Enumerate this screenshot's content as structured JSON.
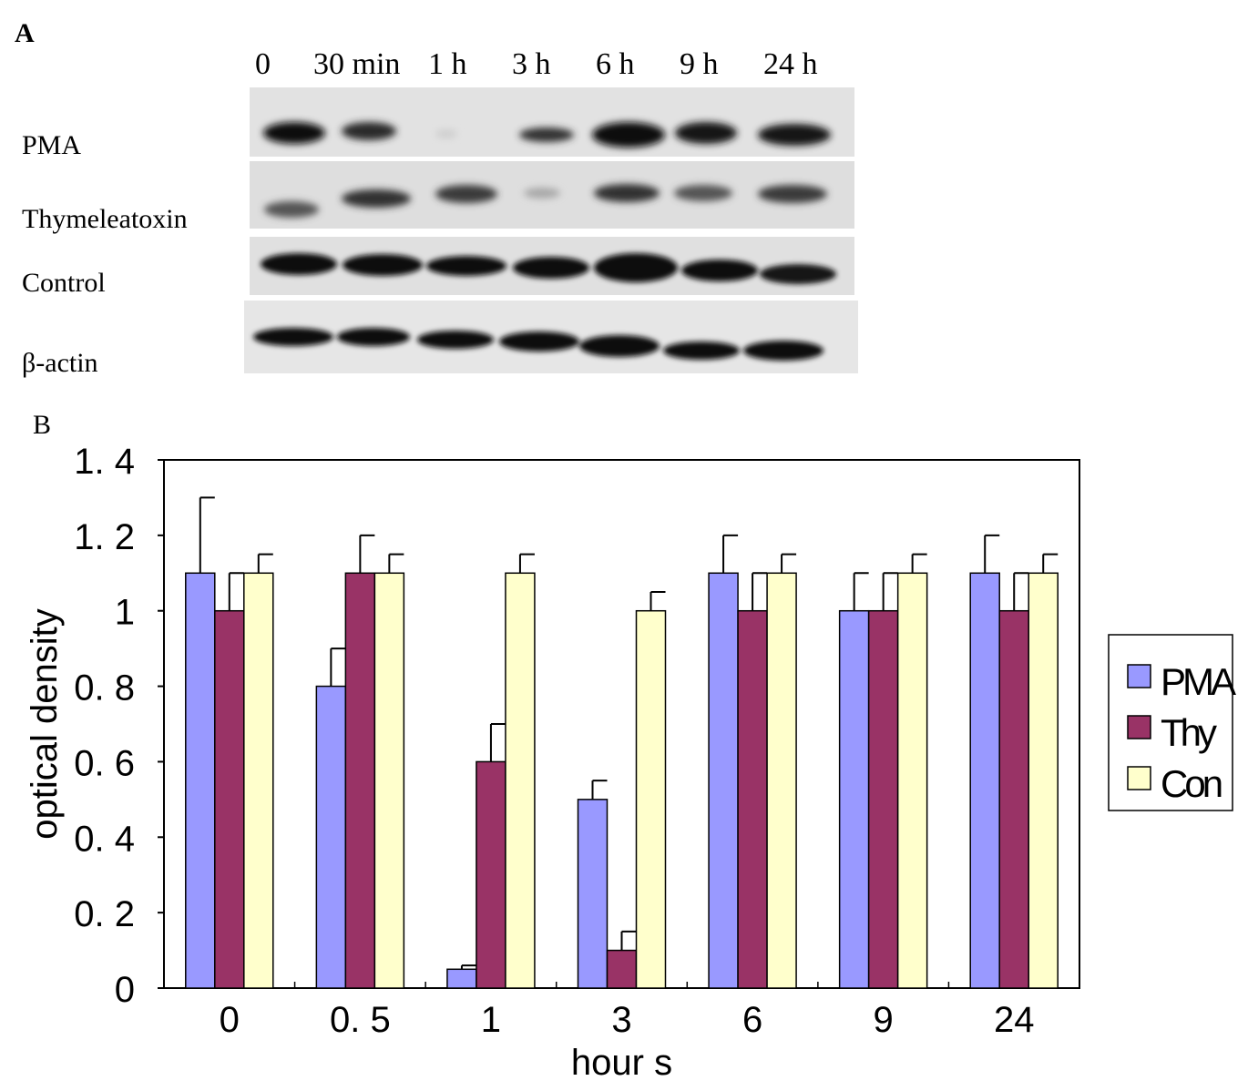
{
  "panelA": {
    "letter": "A",
    "lanes": [
      "0",
      "30 min",
      "1 h",
      "3 h",
      "6 h",
      "9 h",
      "24 h"
    ],
    "rows": [
      "PMA",
      "Thymeleatoxin",
      "Control",
      "β-actin"
    ]
  },
  "panelB": {
    "letter": "B"
  },
  "chart_data": {
    "type": "bar",
    "title": "",
    "xlabel": "hour s",
    "ylabel": "optical density",
    "categories": [
      "0",
      "0. 5",
      "1",
      "3",
      "6",
      "9",
      "24"
    ],
    "ylim": [
      0,
      1.4
    ],
    "yticks": [
      "0",
      "0. 2",
      "0. 4",
      "0. 6",
      "0. 8",
      "1",
      "1. 2",
      "1. 4"
    ],
    "grid": false,
    "legend_position": "right",
    "series": [
      {
        "name": "PMA",
        "color": "#9999ff",
        "values": [
          1.1,
          0.8,
          0.05,
          0.5,
          1.1,
          1.0,
          1.1
        ],
        "errors": [
          0.2,
          0.1,
          0.01,
          0.05,
          0.1,
          0.1,
          0.1
        ]
      },
      {
        "name": "Thy",
        "color": "#993366",
        "values": [
          1.0,
          1.1,
          0.6,
          0.1,
          1.0,
          1.0,
          1.0
        ],
        "errors": [
          0.1,
          0.1,
          0.1,
          0.05,
          0.1,
          0.1,
          0.1
        ]
      },
      {
        "name": "Con",
        "color": "#ffffcc",
        "values": [
          1.1,
          1.1,
          1.1,
          1.0,
          1.1,
          1.1,
          1.1
        ],
        "errors": [
          0.05,
          0.05,
          0.05,
          0.05,
          0.05,
          0.05,
          0.05
        ]
      }
    ]
  }
}
